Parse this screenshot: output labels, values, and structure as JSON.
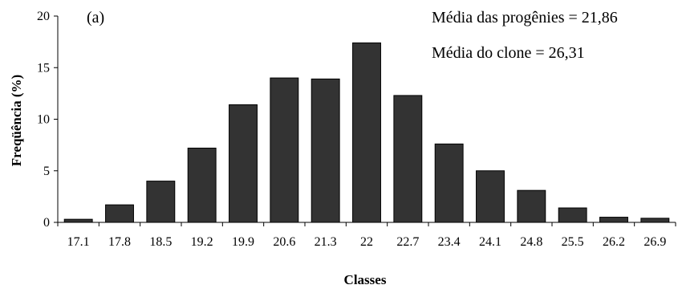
{
  "chart_data": {
    "type": "bar",
    "panel_label": "(a)",
    "xlabel": "Classes",
    "ylabel": "Freqüência (%)",
    "ylim": [
      0,
      20
    ],
    "yticks": [
      0,
      5,
      10,
      15,
      20
    ],
    "categories": [
      "17.1",
      "17.8",
      "18.5",
      "19.2",
      "19.9",
      "20.6",
      "21.3",
      "22",
      "22.7",
      "23.4",
      "24.1",
      "24.8",
      "25.5",
      "26.2",
      "26.9"
    ],
    "values": [
      0.3,
      1.7,
      4.0,
      7.2,
      11.4,
      14.0,
      13.9,
      17.4,
      12.3,
      7.6,
      5.0,
      3.1,
      1.4,
      0.5,
      0.4
    ],
    "annotations": [
      "Média das progênies = 21,86",
      "Média do clone = 26,31"
    ],
    "bar_color": "#333333",
    "grid": false
  }
}
